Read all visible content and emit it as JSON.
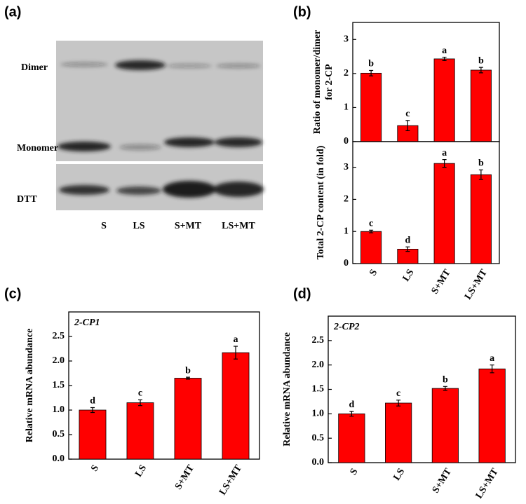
{
  "panels": [
    "(a)",
    "(b)",
    "(c)",
    "(d)"
  ],
  "blot": {
    "bands": [
      "Dimer",
      "Monomer",
      "DTT"
    ],
    "lanes": [
      "S",
      "LS",
      "S+MT",
      "LS+MT"
    ]
  },
  "chart_data": [
    {
      "type": "bar",
      "ylabel": [
        "Ratio of monomer/dimer",
        "for 2-CP"
      ],
      "values": [
        2.01,
        0.47,
        2.43,
        2.1
      ],
      "errors": [
        0.08,
        0.15,
        0.05,
        0.08
      ],
      "letters": [
        "b",
        "c",
        "a",
        "b"
      ],
      "color": "#ff0000",
      "ylim": [
        0,
        3.5
      ],
      "yticks": [
        0,
        1,
        2,
        3
      ]
    },
    {
      "type": "bar",
      "ylabel": "Total 2-CP content (in fold)",
      "categories": [
        "S",
        "LS",
        "S+MT",
        "LS+MT"
      ],
      "values": [
        1.0,
        0.45,
        3.12,
        2.77
      ],
      "errors": [
        0.04,
        0.07,
        0.12,
        0.15
      ],
      "letters": [
        "c",
        "d",
        "a",
        "b"
      ],
      "color": "#ff0000",
      "ylim": [
        0,
        3.8
      ],
      "yticks": [
        0,
        1,
        2,
        3
      ]
    },
    {
      "type": "bar",
      "annotation": "2-CP1",
      "ylabel": "Relative mRNA abundance",
      "categories": [
        "S",
        "LS",
        "S+MT",
        "LS+MT"
      ],
      "values": [
        1.0,
        1.15,
        1.65,
        2.17
      ],
      "errors": [
        0.05,
        0.06,
        0.02,
        0.13
      ],
      "letters": [
        "d",
        "c",
        "b",
        "a"
      ],
      "color": "#ff0000",
      "ylim": [
        0,
        3.0
      ],
      "yticks": [
        {
          "value": 0,
          "label": "0.0"
        },
        0.5,
        {
          "value": 1,
          "label": "1.0"
        },
        1.5,
        {
          "value": 2,
          "label": "2.0"
        },
        2.5
      ]
    },
    {
      "type": "bar",
      "annotation": "2-CP2",
      "ylabel": "Relative mRNA abundance",
      "categories": [
        "S",
        "LS",
        "S+MT",
        "LS+MT"
      ],
      "values": [
        1.0,
        1.22,
        1.52,
        1.92
      ],
      "errors": [
        0.05,
        0.06,
        0.04,
        0.08
      ],
      "letters": [
        "d",
        "c",
        "b",
        "a"
      ],
      "color": "#ff0000",
      "ylim": [
        0,
        3.0
      ],
      "yticks": [
        {
          "value": 0,
          "label": "0.0"
        },
        0.5,
        {
          "value": 1,
          "label": "1.0"
        },
        1.5,
        {
          "value": 2,
          "label": "2.0"
        },
        2.5
      ]
    }
  ]
}
